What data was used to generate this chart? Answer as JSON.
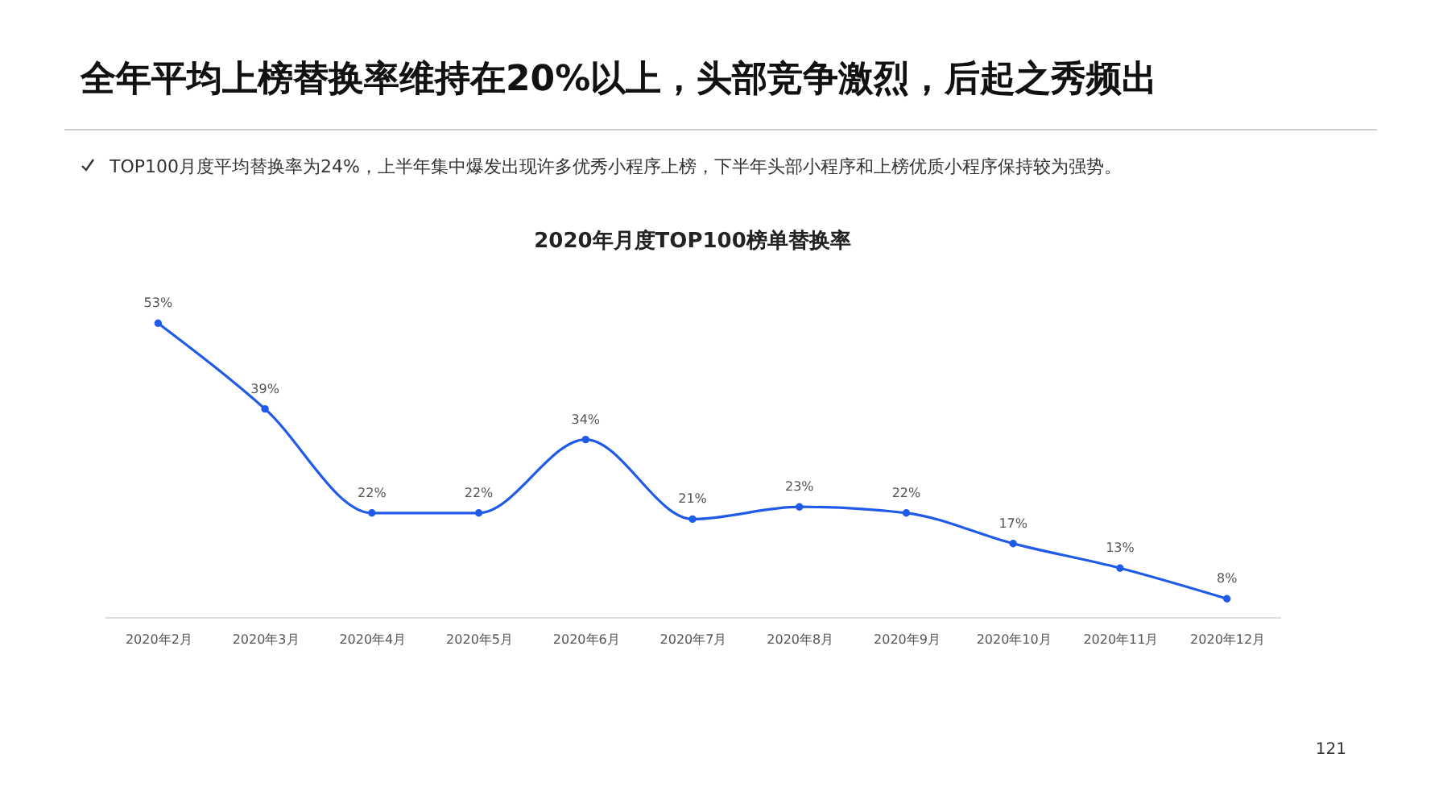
{
  "chart_data": {
    "type": "line",
    "title": "全年平均上榜替换率维持在20%以上，头部竞争激烈，后起之秀频出",
    "subtitle": "TOP100月度平均替换率为24%，上半年集中爆发出现许多优秀小程序上榜，下半年头部小程序和上榜优质小程序保持较为强势。",
    "annotations": [
      "2020年月度TOP100榜单替换率",
      "121"
    ],
    "categories": [
      "2020年2月",
      "2020年3月",
      "2020年4月",
      "2020年5月",
      "2020年6月",
      "2020年7月",
      "2020年8月",
      "2020年9月",
      "2020年10月",
      "2020年11月",
      "2020年12月"
    ],
    "series": [
      {
        "color": "#1f5be8",
        "values": [
          53,
          39,
          22,
          22,
          34,
          21,
          23,
          22,
          17,
          13,
          8
        ],
        "value_labels": [
          "53%",
          "39%",
          "22%",
          "22%",
          "34%",
          "21%",
          "23%",
          "22%",
          "17%",
          "13%",
          "8%"
        ]
      }
    ],
    "marker": "circle",
    "grid": false,
    "legend": false
  }
}
